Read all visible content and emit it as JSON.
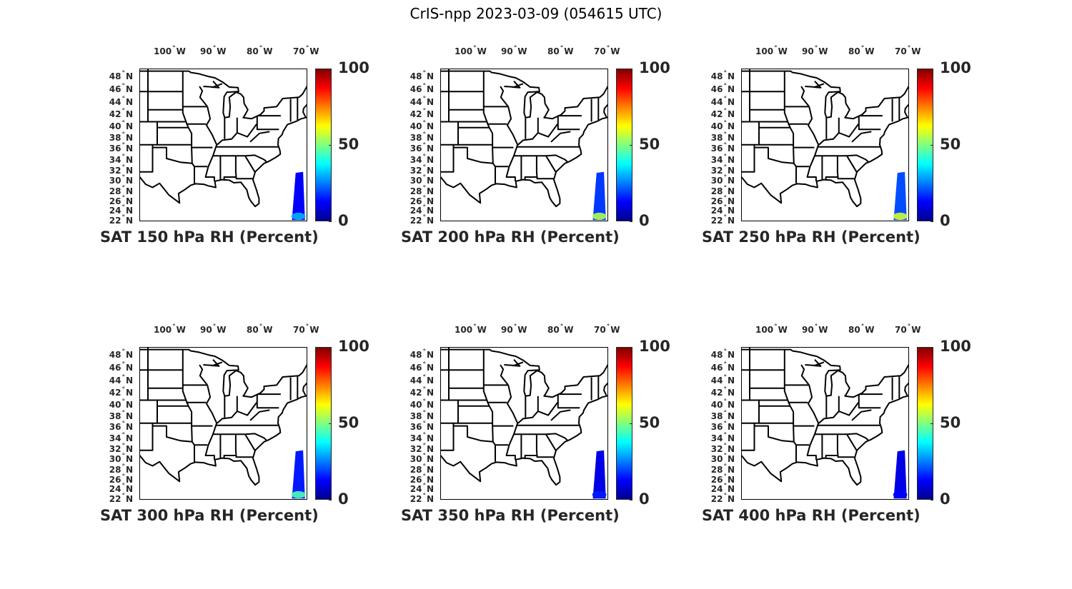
{
  "suptitle": "CrIS-npp 2023-03-09 (054615 UTC)",
  "lon_ticks": [
    "100",
    "90",
    "80",
    "70"
  ],
  "lon_hemisphere": "W",
  "lat_ticks": [
    "48",
    "46",
    "44",
    "42",
    "40",
    "38",
    "36",
    "34",
    "32",
    "30",
    "28",
    "26",
    "24",
    "22"
  ],
  "lat_hemisphere": "N",
  "degree_symbol": "°",
  "colorbar": {
    "ticks": [
      "0",
      "50",
      "100"
    ],
    "colormap": "jet",
    "range": [
      0,
      100
    ]
  },
  "panels": [
    {
      "title": "SAT 150 hPa RH (Percent)",
      "swath_rh": 12,
      "swath_south_rh": 30
    },
    {
      "title": "SAT 200 hPa RH (Percent)",
      "swath_rh": 18,
      "swath_south_rh": 55
    },
    {
      "title": "SAT 250 hPa RH (Percent)",
      "swath_rh": 20,
      "swath_south_rh": 58
    },
    {
      "title": "SAT 300 hPa RH (Percent)",
      "swath_rh": 15,
      "swath_south_rh": 45
    },
    {
      "title": "SAT 350 hPa RH (Percent)",
      "swath_rh": 10,
      "swath_south_rh": 15
    },
    {
      "title": "SAT 400 hPa RH (Percent)",
      "swath_rh": 10,
      "swath_south_rh": 12
    }
  ]
}
